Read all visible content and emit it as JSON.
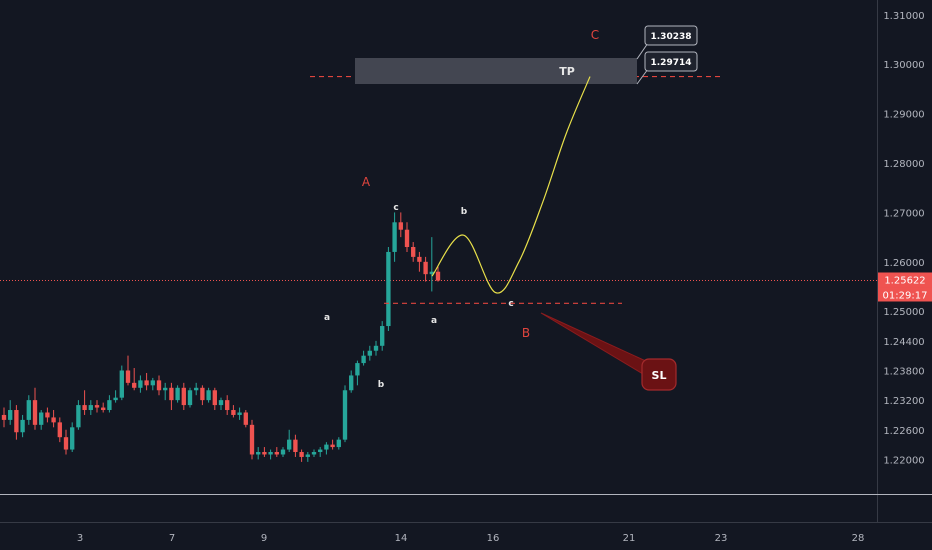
{
  "chart_data": {
    "type": "candlestick",
    "y_axis": {
      "min": 1.213,
      "max": 1.313,
      "ticks": [
        "1.31000",
        "1.30000",
        "1.29000",
        "1.28000",
        "1.27000",
        "1.26000",
        "1.25000",
        "1.24400",
        "1.23800",
        "1.23200",
        "1.22600",
        "1.22000"
      ]
    },
    "x_axis": {
      "ticks": [
        "3",
        "7",
        "9",
        "14",
        "16",
        "21",
        "23",
        "28"
      ]
    },
    "current_price": {
      "value": "1.25622",
      "countdown": "01:29:17"
    },
    "tp_box": {
      "label": "TP"
    },
    "price_tags": [
      "1.30238",
      "1.29714"
    ],
    "sl_label": "SL",
    "tp_level": 1.2975,
    "sl_level": 1.2516,
    "wave_labels": {
      "major": [
        "A",
        "B",
        "C"
      ],
      "minor": [
        "a",
        "b",
        "c",
        "a",
        "b",
        "c"
      ]
    },
    "projected_path": [
      [
        1.2571,
        0
      ],
      [
        1.2654,
        0.2
      ],
      [
        1.2538,
        0.4
      ],
      [
        1.26,
        0.55
      ],
      [
        1.272,
        0.7
      ],
      [
        1.286,
        0.85
      ],
      [
        1.2975,
        1.0
      ]
    ],
    "candles": [
      [
        1.229,
        1.2305,
        1.2265,
        1.228
      ],
      [
        1.228,
        1.232,
        1.227,
        1.23
      ],
      [
        1.23,
        1.231,
        1.224,
        1.2255
      ],
      [
        1.2255,
        1.229,
        1.2245,
        1.228
      ],
      [
        1.228,
        1.233,
        1.227,
        1.232
      ],
      [
        1.232,
        1.2345,
        1.226,
        1.227
      ],
      [
        1.227,
        1.23,
        1.226,
        1.2295
      ],
      [
        1.2295,
        1.2305,
        1.2275,
        1.2285
      ],
      [
        1.2285,
        1.23,
        1.2265,
        1.2275
      ],
      [
        1.2275,
        1.2285,
        1.2235,
        1.2245
      ],
      [
        1.2245,
        1.226,
        1.221,
        1.222
      ],
      [
        1.222,
        1.2275,
        1.2215,
        1.2265
      ],
      [
        1.2265,
        1.232,
        1.226,
        1.231
      ],
      [
        1.231,
        1.234,
        1.229,
        1.23
      ],
      [
        1.23,
        1.232,
        1.229,
        1.231
      ],
      [
        1.231,
        1.232,
        1.2295,
        1.2305
      ],
      [
        1.2305,
        1.2315,
        1.2295,
        1.23
      ],
      [
        1.23,
        1.233,
        1.2295,
        1.232
      ],
      [
        1.232,
        1.234,
        1.2315,
        1.2325
      ],
      [
        1.2325,
        1.239,
        1.232,
        1.238
      ],
      [
        1.238,
        1.241,
        1.235,
        1.2355
      ],
      [
        1.2355,
        1.2385,
        1.234,
        1.2345
      ],
      [
        1.2345,
        1.237,
        1.2335,
        1.236
      ],
      [
        1.236,
        1.2375,
        1.234,
        1.235
      ],
      [
        1.235,
        1.2365,
        1.234,
        1.236
      ],
      [
        1.236,
        1.237,
        1.233,
        1.234
      ],
      [
        1.234,
        1.2355,
        1.232,
        1.2345
      ],
      [
        1.2345,
        1.2355,
        1.23,
        1.232
      ],
      [
        1.232,
        1.235,
        1.2315,
        1.2345
      ],
      [
        1.2345,
        1.2355,
        1.23,
        1.231
      ],
      [
        1.231,
        1.2345,
        1.2305,
        1.234
      ],
      [
        1.234,
        1.2355,
        1.233,
        1.2345
      ],
      [
        1.2345,
        1.235,
        1.231,
        1.232
      ],
      [
        1.232,
        1.2345,
        1.2315,
        1.234
      ],
      [
        1.234,
        1.2345,
        1.23,
        1.231
      ],
      [
        1.231,
        1.2325,
        1.23,
        1.232
      ],
      [
        1.232,
        1.233,
        1.229,
        1.23
      ],
      [
        1.23,
        1.231,
        1.2285,
        1.229
      ],
      [
        1.229,
        1.2305,
        1.228,
        1.2295
      ],
      [
        1.2295,
        1.23,
        1.2265,
        1.227
      ],
      [
        1.227,
        1.228,
        1.22,
        1.221
      ],
      [
        1.221,
        1.2225,
        1.22,
        1.2215
      ],
      [
        1.2215,
        1.2225,
        1.2205,
        1.221
      ],
      [
        1.221,
        1.222,
        1.22,
        1.2215
      ],
      [
        1.2215,
        1.2225,
        1.2205,
        1.221
      ],
      [
        1.221,
        1.2225,
        1.2205,
        1.222
      ],
      [
        1.222,
        1.226,
        1.2215,
        1.224
      ],
      [
        1.224,
        1.225,
        1.2205,
        1.2215
      ],
      [
        1.2215,
        1.222,
        1.2195,
        1.2205
      ],
      [
        1.2205,
        1.2215,
        1.2195,
        1.221
      ],
      [
        1.221,
        1.222,
        1.2205,
        1.2215
      ],
      [
        1.2215,
        1.2225,
        1.2205,
        1.222
      ],
      [
        1.222,
        1.2235,
        1.221,
        1.223
      ],
      [
        1.223,
        1.224,
        1.222,
        1.2225
      ],
      [
        1.2225,
        1.2245,
        1.222,
        1.224
      ],
      [
        1.224,
        1.235,
        1.2235,
        1.234
      ],
      [
        1.234,
        1.238,
        1.2335,
        1.237
      ],
      [
        1.237,
        1.24,
        1.235,
        1.2395
      ],
      [
        1.2395,
        1.242,
        1.239,
        1.241
      ],
      [
        1.241,
        1.243,
        1.24,
        1.242
      ],
      [
        1.242,
        1.244,
        1.241,
        1.243
      ],
      [
        1.243,
        1.248,
        1.242,
        1.247
      ],
      [
        1.247,
        1.263,
        1.246,
        1.262
      ],
      [
        1.262,
        1.27,
        1.26,
        1.268
      ],
      [
        1.268,
        1.27,
        1.265,
        1.2665
      ],
      [
        1.2665,
        1.268,
        1.262,
        1.263
      ],
      [
        1.263,
        1.264,
        1.26,
        1.261
      ],
      [
        1.261,
        1.262,
        1.258,
        1.26
      ],
      [
        1.26,
        1.261,
        1.256,
        1.2575
      ],
      [
        1.2575,
        1.265,
        1.254,
        1.258
      ],
      [
        1.258,
        1.259,
        1.256,
        1.2562
      ]
    ]
  }
}
